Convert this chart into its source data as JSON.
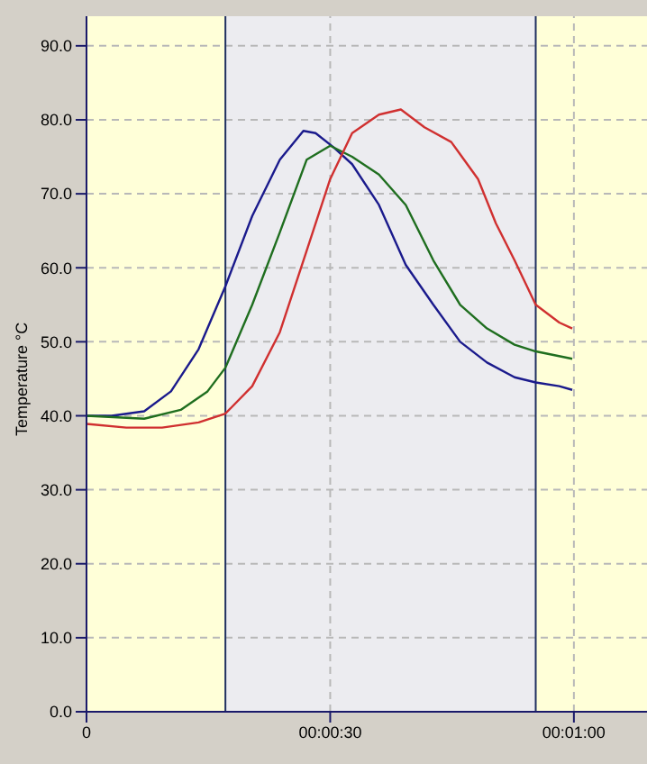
{
  "chart_data": {
    "type": "line",
    "ylabel": "Temperature °C",
    "xlim": [
      0,
      69
    ],
    "ylim": [
      0,
      94
    ],
    "xticks": [
      {
        "value": 0,
        "label": "0"
      },
      {
        "value": 30,
        "label": "00:00:30"
      },
      {
        "value": 60,
        "label": "00:01:00"
      }
    ],
    "yticks": [
      {
        "value": 0,
        "label": "0.0"
      },
      {
        "value": 10,
        "label": "10.0"
      },
      {
        "value": 20,
        "label": "20.0"
      },
      {
        "value": 30,
        "label": "30.0"
      },
      {
        "value": 40,
        "label": "40.0"
      },
      {
        "value": 50,
        "label": "50.0"
      },
      {
        "value": 60,
        "label": "60.0"
      },
      {
        "value": 70,
        "label": "70.0"
      },
      {
        "value": 80,
        "label": "80.0"
      },
      {
        "value": 90,
        "label": "90.0"
      }
    ],
    "grid": true,
    "line_style": "solid",
    "marker": "none",
    "bands": [
      {
        "axis": "x",
        "from": 0,
        "to": 17.1,
        "color": "#ffffd8"
      },
      {
        "axis": "x",
        "from": 17.1,
        "to": 55.3,
        "color": "#ececf0"
      },
      {
        "axis": "x",
        "from": 55.3,
        "to": 69,
        "color": "#ffffd8"
      }
    ],
    "ref_lines": [
      {
        "axis": "x",
        "value": 17.1,
        "color": "#203060"
      },
      {
        "axis": "x",
        "value": 55.3,
        "color": "#203060"
      }
    ],
    "series": [
      {
        "color": "#1a1a8c",
        "x": [
          0,
          3.1,
          7.1,
          10.4,
          13.8,
          17.1,
          20.4,
          23.8,
          26.7,
          28.2,
          30.4,
          32.7,
          36,
          39.3,
          42.7,
          46,
          49.3,
          52.7,
          55.3,
          58.2,
          59.8
        ],
        "values": [
          40,
          40,
          40.6,
          43.3,
          49,
          57.5,
          67,
          74.6,
          78.5,
          78.2,
          76.3,
          74,
          68.5,
          60.4,
          55,
          50,
          47.2,
          45.2,
          44.5,
          44,
          43.5
        ]
      },
      {
        "color": "#1f6e1f",
        "x": [
          0,
          7.1,
          11.6,
          14.9,
          17.1,
          20.4,
          23.8,
          27.1,
          30,
          32.7,
          36,
          39.3,
          42.7,
          46,
          49.3,
          52.7,
          55.3,
          59.8
        ],
        "values": [
          40,
          39.6,
          40.8,
          43.3,
          46.5,
          55,
          64.8,
          74.6,
          76.5,
          75,
          72.6,
          68.5,
          61,
          55,
          51.8,
          49.6,
          48.7,
          47.7
        ]
      },
      {
        "color": "#d03030",
        "x": [
          0,
          4.9,
          9.3,
          13.8,
          17.1,
          20.4,
          23.8,
          27.1,
          30,
          32.7,
          36,
          38.7,
          41.6,
          44.9,
          48.2,
          50.4,
          52.7,
          55.3,
          58.2,
          59.8
        ],
        "values": [
          38.9,
          38.4,
          38.4,
          39.1,
          40.3,
          44,
          51.3,
          62.3,
          72,
          78.2,
          80.7,
          81.4,
          79,
          77,
          72,
          66,
          61,
          55,
          52.6,
          51.8
        ]
      }
    ]
  }
}
